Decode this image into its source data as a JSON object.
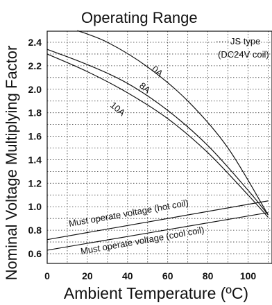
{
  "chart_data": {
    "type": "line",
    "title": "Operating Range",
    "xlabel": "Ambient Temperature (ºC)",
    "ylabel": "Nominal Voltage Multiplying Factor",
    "xlim": [
      0,
      110
    ],
    "ylim": [
      0.5,
      2.5
    ],
    "x_ticks": [
      "0",
      "20",
      "40",
      "60",
      "80",
      "100"
    ],
    "y_ticks": [
      "0.6",
      "0.8",
      "1.0",
      "1.2",
      "1.4",
      "1.6",
      "1.8",
      "2.0",
      "2.2",
      "2.4"
    ],
    "grid": true,
    "legend": [
      "JS type",
      "(DC24V coil)"
    ],
    "series": [
      {
        "name": "0A",
        "x": [
          15,
          30,
          50,
          70,
          90,
          110
        ],
        "y": [
          2.5,
          2.4,
          2.19,
          1.9,
          1.5,
          0.93
        ]
      },
      {
        "name": "8A",
        "x": [
          0,
          20,
          40,
          60,
          80,
          100,
          110
        ],
        "y": [
          2.34,
          2.21,
          2.05,
          1.82,
          1.52,
          1.14,
          0.93
        ]
      },
      {
        "name": "10A",
        "x": [
          0,
          20,
          40,
          60,
          80,
          100,
          110
        ],
        "y": [
          2.3,
          2.15,
          1.97,
          1.75,
          1.46,
          1.1,
          0.91
        ]
      },
      {
        "name": "Must operate voltage (hot coil)",
        "x": [
          0,
          110
        ],
        "y": [
          0.72,
          1.05
        ]
      },
      {
        "name": "Must operate voltage (cool coil)",
        "x": [
          0,
          110
        ],
        "y": [
          0.63,
          0.95
        ]
      }
    ]
  }
}
